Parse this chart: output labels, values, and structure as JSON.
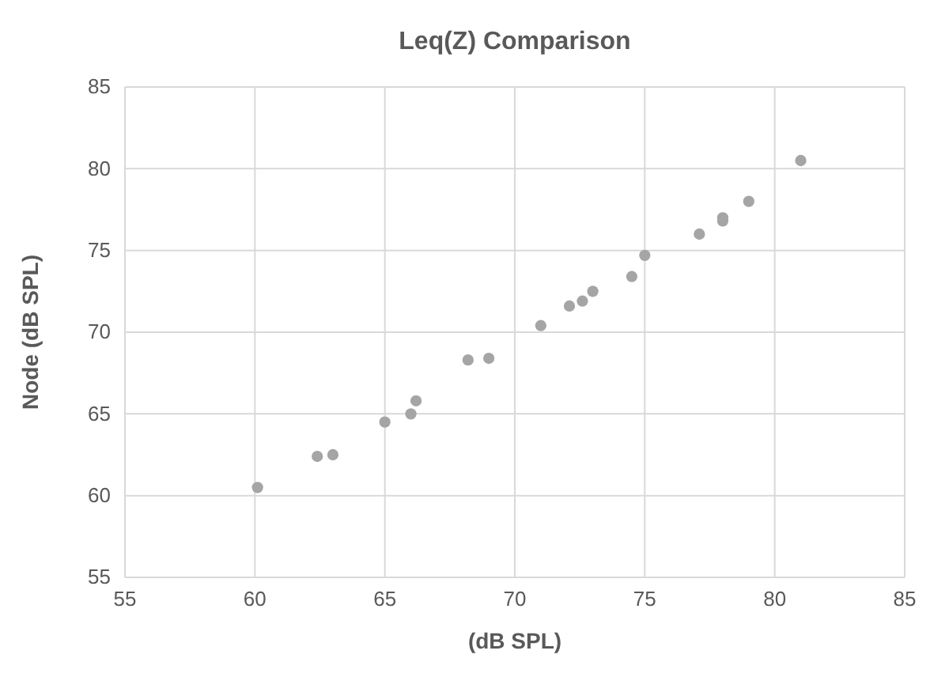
{
  "chart_data": {
    "type": "scatter",
    "title": "Leq(Z)  Comparison",
    "xlabel": "(dB SPL)",
    "ylabel": "Node (dB SPL)",
    "x": [
      60.1,
      62.4,
      63.0,
      65.0,
      66.0,
      66.2,
      68.2,
      69.0,
      71.0,
      72.1,
      72.6,
      73.0,
      74.5,
      75.0,
      77.1,
      78.0,
      78.0,
      79.0,
      81.0
    ],
    "series": [
      {
        "color": "#a5a5a5",
        "values": [
          60.5,
          62.4,
          62.5,
          64.5,
          65.0,
          65.8,
          68.3,
          68.4,
          70.4,
          71.6,
          71.9,
          72.5,
          73.4,
          74.7,
          76.0,
          76.8,
          77.0,
          78.0,
          80.5
        ]
      }
    ],
    "xlim": [
      55,
      85
    ],
    "xticks": [
      55,
      60,
      65,
      70,
      75,
      80,
      85
    ],
    "ylim": [
      55,
      85
    ],
    "yticks": [
      55,
      60,
      65,
      70,
      75,
      80,
      85
    ],
    "grid": true,
    "marker": "circle"
  }
}
